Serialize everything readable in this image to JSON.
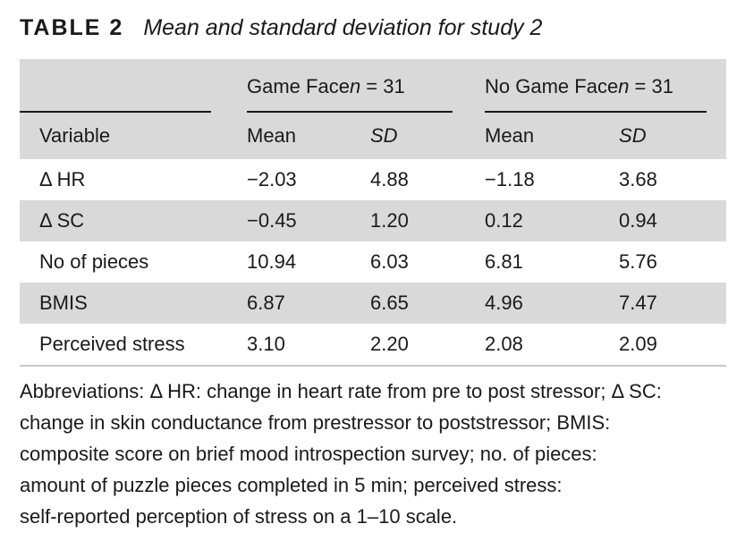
{
  "caption": {
    "label": "TABLE 2",
    "title": "Mean and standard deviation for study 2"
  },
  "table": {
    "groups": [
      {
        "name": "Game Face",
        "n_label": "n",
        "n_value": " = 31"
      },
      {
        "name": "No Game Face",
        "n_label": "n",
        "n_value": " = 31"
      }
    ],
    "columns": {
      "variable": "Variable",
      "game_mean": "Mean",
      "game_sd": "SD",
      "nogame_mean": "Mean",
      "nogame_sd": "SD"
    },
    "rows": [
      {
        "variable": "Δ HR",
        "game_mean": "−2.03",
        "game_sd": "4.88",
        "nogame_mean": "−1.18",
        "nogame_sd": "3.68"
      },
      {
        "variable": "Δ SC",
        "game_mean": "−0.45",
        "game_sd": "1.20",
        "nogame_mean": "0.12",
        "nogame_sd": "0.94"
      },
      {
        "variable": "No of pieces",
        "game_mean": "10.94",
        "game_sd": "6.03",
        "nogame_mean": "6.81",
        "nogame_sd": "5.76"
      },
      {
        "variable": "BMIS",
        "game_mean": "6.87",
        "game_sd": "6.65",
        "nogame_mean": "4.96",
        "nogame_sd": "7.47"
      },
      {
        "variable": "Perceived stress",
        "game_mean": "3.10",
        "game_sd": "2.20",
        "nogame_mean": "2.08",
        "nogame_sd": "2.09"
      }
    ]
  },
  "note": {
    "lines": [
      "Abbreviations: Δ HR: change in heart rate from pre to post stressor; Δ SC:",
      "change in skin conductance from prestressor to poststressor; BMIS:",
      "composite score on brief mood introspection survey; no. of pieces:",
      "amount of puzzle pieces completed in 5 min; perceived stress:",
      "self-reported perception of stress on a 1–10 scale."
    ]
  }
}
